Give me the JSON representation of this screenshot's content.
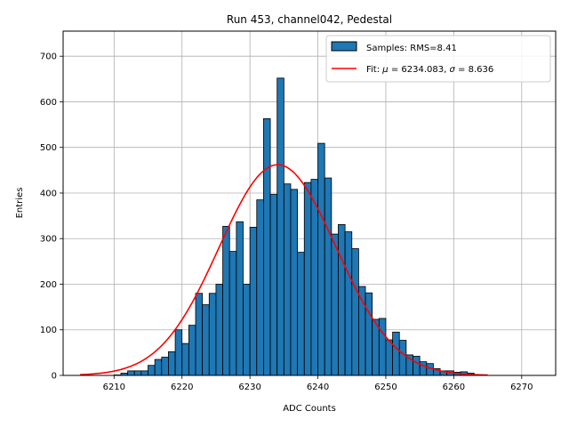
{
  "chart_data": {
    "type": "bar",
    "title": "Run 453, channel042, Pedestal",
    "xlabel": "ADC Counts",
    "ylabel": "Entries",
    "xlim": [
      6202.5,
      6275
    ],
    "ylim": [
      0,
      755
    ],
    "xticks": [
      6210,
      6220,
      6230,
      6240,
      6250,
      6260,
      6270
    ],
    "yticks": [
      0,
      100,
      200,
      300,
      400,
      500,
      600,
      700
    ],
    "grid": true,
    "legend_position": "top-right",
    "colors": {
      "bars": "#1f77b4",
      "bar_edge": "#000000",
      "fit": "#ff0000",
      "grid": "#b0b0b0"
    },
    "histogram": {
      "name": "Samples: RMS=8.41",
      "bin_edges_start": 6210,
      "bin_width": 1,
      "counts": [
        1,
        5,
        10,
        10,
        10,
        22,
        35,
        40,
        52,
        100,
        70,
        110,
        180,
        155,
        180,
        200,
        327,
        272,
        337,
        200,
        325,
        385,
        563,
        397,
        652,
        420,
        408,
        270,
        423,
        430,
        509,
        433,
        310,
        331,
        315,
        278,
        195,
        181,
        123,
        125,
        78,
        95,
        77,
        45,
        42,
        30,
        26,
        15,
        10,
        10,
        7,
        8,
        5
      ]
    },
    "fit": {
      "name_prefix": "Fit: ",
      "mu_symbol": "μ",
      "sigma_symbol": "σ",
      "equals": " = ",
      "mu_text": "6234.083",
      "sigma_text": "8.636",
      "separator": ", ",
      "mu": 6234.083,
      "sigma": 8.636,
      "amplitude": 462,
      "x_range": [
        6205,
        6265
      ]
    }
  }
}
